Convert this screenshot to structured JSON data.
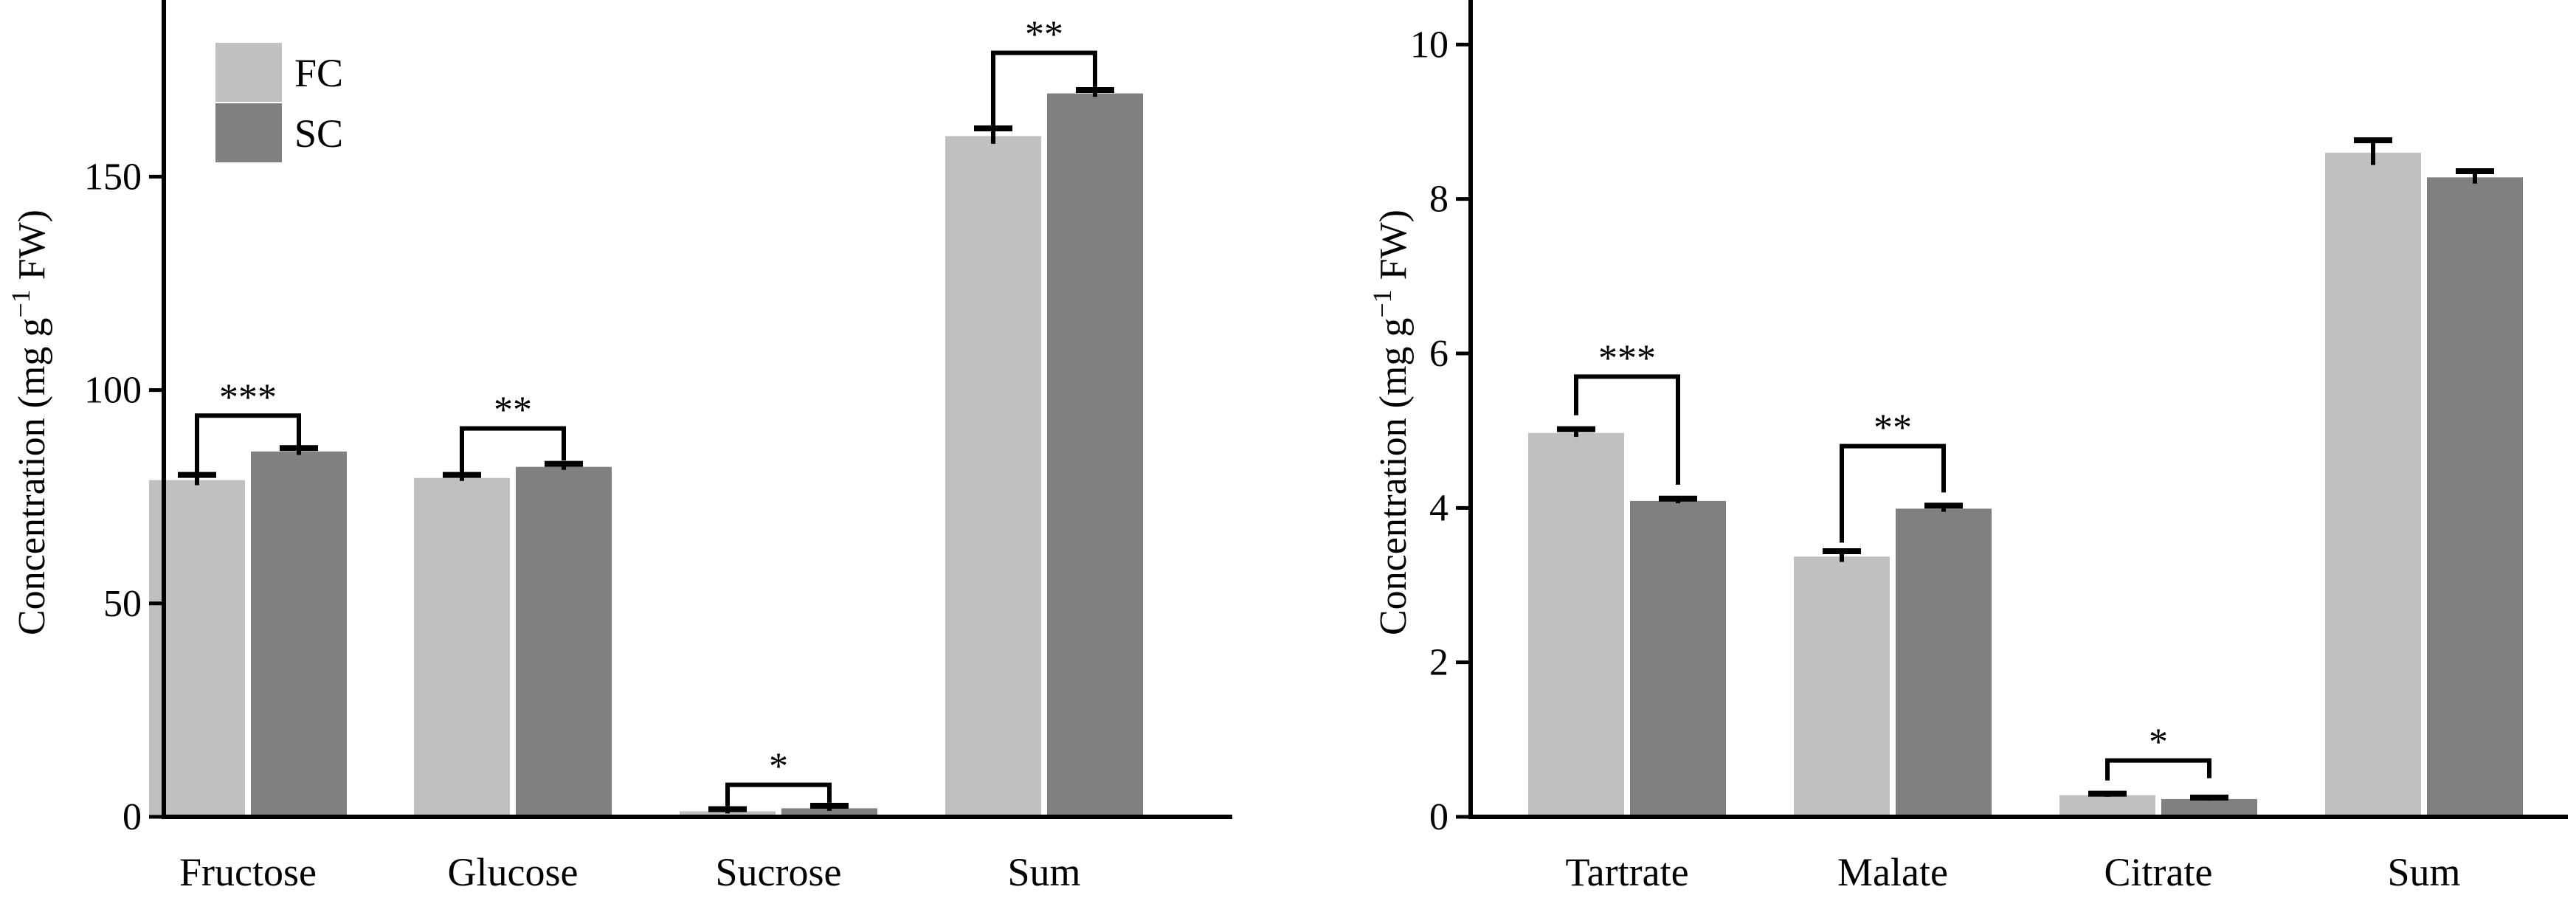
{
  "colors": {
    "FC": "#c0c0c0",
    "SC": "#808080",
    "axis": "#000000"
  },
  "chart_data": [
    {
      "type": "bar",
      "panel": "left",
      "categories": [
        "Fructose",
        "Glucose",
        "Sucrose",
        "Sum"
      ],
      "series": [
        {
          "name": "FC",
          "values": [
            78.9,
            79.4,
            1.3,
            159.5
          ],
          "errors": [
            1.2,
            0.7,
            0.5,
            1.8
          ]
        },
        {
          "name": "SC",
          "values": [
            85.6,
            82.0,
            2.0,
            169.5
          ],
          "errors": [
            0.8,
            0.7,
            0.6,
            0.8
          ]
        }
      ],
      "ylabel": "Concentration (mg g",
      "ylabel_sup": "−1",
      "ylabel_tail": " FW)",
      "ylim": [
        0,
        190
      ],
      "yticks": [
        "0",
        "50",
        "100",
        "150"
      ],
      "ytick_values": [
        0,
        50,
        100,
        150
      ],
      "legend": {
        "entries": [
          "FC",
          "SC"
        ],
        "placement": "top-left"
      },
      "significance": [
        {
          "category": 0,
          "label": "***",
          "bracket_y": 94,
          "drop_fc": 80.5,
          "drop_sc": 87.0
        },
        {
          "category": 1,
          "label": "**",
          "bracket_y": 91,
          "drop_fc": 80.6,
          "drop_sc": 83.5
        },
        {
          "category": 2,
          "label": "*",
          "bracket_y": 7.5,
          "drop_fc": 2.5,
          "drop_sc": 3.3
        },
        {
          "category": 3,
          "label": "**",
          "bracket_y": 179,
          "drop_fc": 162,
          "drop_sc": 171
        }
      ]
    },
    {
      "type": "bar",
      "panel": "right",
      "categories": [
        "Tartrate",
        "Malate",
        "Citrate",
        "Sum"
      ],
      "series": [
        {
          "name": "FC",
          "values": [
            4.97,
            3.37,
            0.28,
            8.6
          ],
          "errors": [
            0.05,
            0.07,
            0.02,
            0.16
          ]
        },
        {
          "name": "SC",
          "values": [
            4.09,
            3.99,
            0.23,
            8.28
          ],
          "errors": [
            0.03,
            0.04,
            0.02,
            0.08
          ]
        }
      ],
      "ylabel": "Concentration (mg g",
      "ylabel_sup": "−1",
      "ylabel_tail": " FW)",
      "ylim": [
        0,
        10.5
      ],
      "yticks": [
        "0",
        "2",
        "4",
        "6",
        "8",
        "10"
      ],
      "ytick_values": [
        0,
        2,
        4,
        6,
        8,
        10
      ],
      "significance": [
        {
          "category": 0,
          "label": "***",
          "bracket_y": 5.7,
          "drop_fc": 5.2,
          "drop_sc": 4.3
        },
        {
          "category": 1,
          "label": "**",
          "bracket_y": 4.8,
          "drop_fc": 3.55,
          "drop_sc": 4.2
        },
        {
          "category": 2,
          "label": "*",
          "bracket_y": 0.73,
          "drop_fc": 0.47,
          "drop_sc": 0.5
        }
      ]
    }
  ]
}
